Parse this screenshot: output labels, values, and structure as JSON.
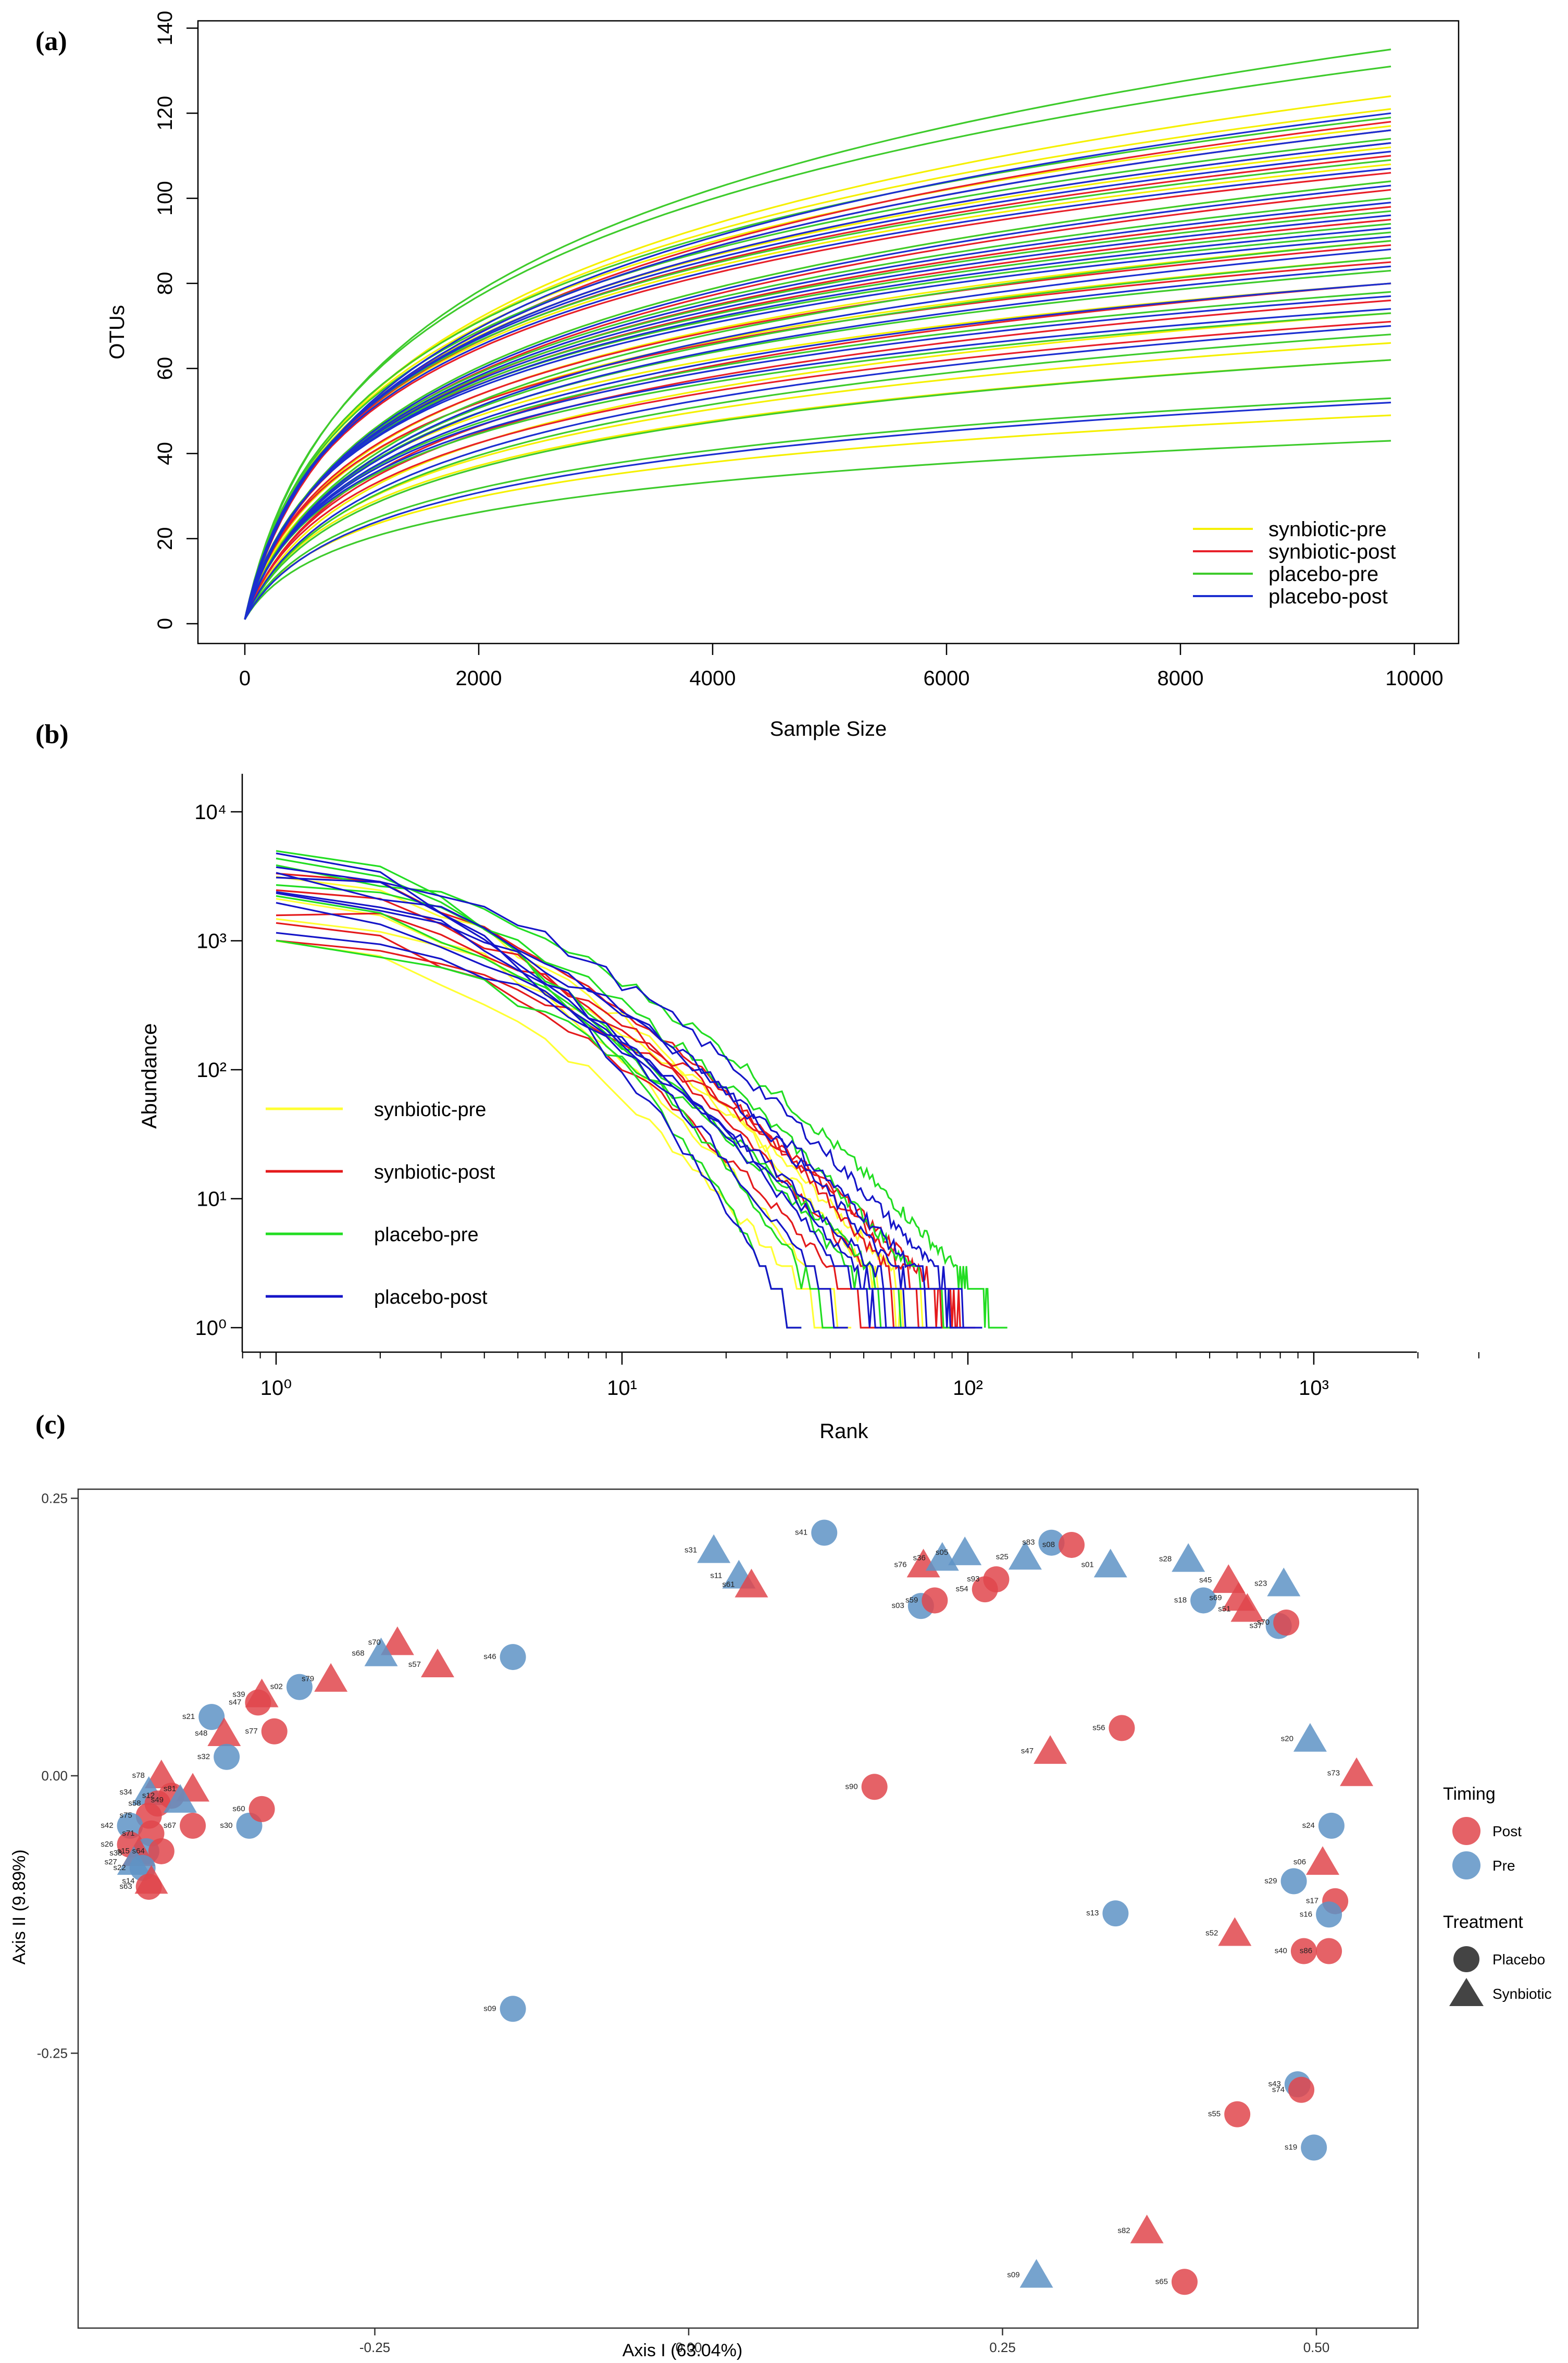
{
  "panels": {
    "a": {
      "label": "(a)"
    },
    "b": {
      "label": "(b)"
    },
    "c": {
      "label": "(c)"
    }
  },
  "chart_data": [
    {
      "type": "line",
      "panel": "(a)",
      "xlabel": "Sample Size",
      "ylabel": "OTUs",
      "xlim": [
        0,
        10000
      ],
      "ylim": [
        0,
        140
      ],
      "xticks": [
        0,
        2000,
        4000,
        6000,
        8000,
        10000
      ],
      "yticks": [
        0,
        20,
        40,
        60,
        80,
        100,
        120,
        140
      ],
      "legend_position": "bottom-right",
      "legend": [
        {
          "name": "synbiotic-pre",
          "color": "#f5f000"
        },
        {
          "name": "synbiotic-post",
          "color": "#e8202a"
        },
        {
          "name": "placebo-pre",
          "color": "#3ecb2c"
        },
        {
          "name": "placebo-post",
          "color": "#1c2fd0"
        }
      ],
      "x_end": 9800,
      "curve_groups": [
        {
          "name": "synbiotic-pre",
          "color": "#f5f000",
          "final_otus": [
            124,
            121,
            117,
            112,
            108,
            104,
            98,
            90,
            86,
            80,
            73,
            66,
            62,
            49
          ]
        },
        {
          "name": "synbiotic-post",
          "color": "#e8202a",
          "final_otus": [
            118,
            116,
            113,
            110,
            106,
            102,
            98,
            95,
            89,
            85,
            80,
            76,
            71
          ]
        },
        {
          "name": "placebo-pre",
          "color": "#3ecb2c",
          "final_otus": [
            135,
            131,
            119,
            114,
            109,
            104,
            100,
            97,
            94,
            92,
            90,
            86,
            83,
            78,
            73,
            68,
            62,
            53,
            43
          ]
        },
        {
          "name": "placebo-post",
          "color": "#1c2fd0",
          "final_otus": [
            120,
            116,
            113,
            111,
            107,
            103,
            99,
            96,
            93,
            91,
            88,
            84,
            80,
            77,
            74,
            70,
            52
          ]
        }
      ]
    },
    {
      "type": "line",
      "panel": "(b)",
      "xlabel": "Rank",
      "ylabel": "Abundance",
      "x_scale": "log",
      "y_scale": "log",
      "xlim": [
        0.8,
        3000
      ],
      "ylim": [
        0.85,
        20000
      ],
      "xticks": [
        1,
        10,
        100,
        1000
      ],
      "xtick_labels": [
        "10⁰",
        "10¹",
        "10²",
        "10³"
      ],
      "yticks": [
        1,
        10,
        100,
        1000,
        10000
      ],
      "ytick_labels": [
        "10⁰",
        "10¹",
        "10²",
        "10³",
        "10⁴"
      ],
      "legend_position": "bottom-left",
      "legend": [
        {
          "name": "synbiotic-pre",
          "color": "#ffff33"
        },
        {
          "name": "synbiotic-post",
          "color": "#e41a1c"
        },
        {
          "name": "placebo-pre",
          "color": "#22dd22"
        },
        {
          "name": "placebo-post",
          "color": "#1515c8"
        }
      ],
      "curve_groups": [
        {
          "name": "synbiotic-pre",
          "color": "#ffff33",
          "start_abundance": [
            1000,
            2200,
            3000,
            1500
          ],
          "last_rank": [
            40,
            46,
            70,
            85
          ]
        },
        {
          "name": "synbiotic-post",
          "color": "#e41a1c",
          "start_abundance": [
            1300,
            2500,
            3300,
            1800,
            1100
          ],
          "last_rank": [
            55,
            68,
            80,
            92,
            105
          ]
        },
        {
          "name": "placebo-pre",
          "color": "#22dd22",
          "start_abundance": [
            5500,
            4200,
            2000,
            1000,
            2800,
            3500
          ],
          "last_rank": [
            33,
            42,
            62,
            75,
            95,
            130
          ]
        },
        {
          "name": "placebo-post",
          "color": "#1515c8",
          "start_abundance": [
            4500,
            3500,
            2600,
            1800,
            1200,
            3000,
            2200,
            4000
          ],
          "last_rank": [
            33,
            45,
            58,
            66,
            76,
            84,
            98,
            110
          ]
        }
      ]
    },
    {
      "type": "scatter",
      "panel": "(c)",
      "xlabel": "Axis I (63.04%)",
      "ylabel": "Axis II (9.89%)",
      "xlim": [
        -0.48,
        0.58
      ],
      "ylim": [
        -0.475,
        0.265
      ],
      "xticks": [
        -0.25,
        0.0,
        0.25,
        0.5
      ],
      "xtick_labels": [
        "-0.25",
        "0.00",
        "0.25",
        "0.50"
      ],
      "yticks": [
        -0.25,
        0.0,
        0.25
      ],
      "ytick_labels": [
        "-0.25",
        "0.00",
        "0.25"
      ],
      "legend": {
        "timing_title": "Timing",
        "timing": [
          {
            "name": "Post",
            "color": "#e0474c"
          },
          {
            "name": "Pre",
            "color": "#5e93c5"
          }
        ],
        "treatment_title": "Treatment",
        "treatment": [
          {
            "name": "Placebo",
            "shape": "circle"
          },
          {
            "name": "Synbiotic",
            "shape": "triangle"
          }
        ]
      },
      "points": [
        {
          "label": "s41",
          "x": 0.108,
          "y": 0.219,
          "timing": "Pre",
          "treatment": "Placebo"
        },
        {
          "label": "s31",
          "x": 0.02,
          "y": 0.203,
          "timing": "Pre",
          "treatment": "Synbiotic"
        },
        {
          "label": "s11",
          "x": 0.04,
          "y": 0.18,
          "timing": "Pre",
          "treatment": "Synbiotic"
        },
        {
          "label": "s61",
          "x": 0.05,
          "y": 0.172,
          "timing": "Post",
          "treatment": "Synbiotic"
        },
        {
          "label": "s76",
          "x": 0.187,
          "y": 0.19,
          "timing": "Post",
          "treatment": "Synbiotic"
        },
        {
          "label": "s36",
          "x": 0.202,
          "y": 0.196,
          "timing": "Pre",
          "treatment": "Synbiotic"
        },
        {
          "label": "s05",
          "x": 0.22,
          "y": 0.201,
          "timing": "Pre",
          "treatment": "Synbiotic"
        },
        {
          "label": "s25",
          "x": 0.268,
          "y": 0.197,
          "timing": "Pre",
          "treatment": "Synbiotic"
        },
        {
          "label": "s83",
          "x": 0.289,
          "y": 0.21,
          "timing": "Pre",
          "treatment": "Placebo"
        },
        {
          "label": "s08",
          "x": 0.305,
          "y": 0.208,
          "timing": "Post",
          "treatment": "Placebo"
        },
        {
          "label": "s01",
          "x": 0.336,
          "y": 0.19,
          "timing": "Pre",
          "treatment": "Synbiotic"
        },
        {
          "label": "s28",
          "x": 0.398,
          "y": 0.195,
          "timing": "Pre",
          "treatment": "Synbiotic"
        },
        {
          "label": "s23",
          "x": 0.474,
          "y": 0.173,
          "timing": "Pre",
          "treatment": "Synbiotic"
        },
        {
          "label": "s45",
          "x": 0.43,
          "y": 0.176,
          "timing": "Post",
          "treatment": "Synbiotic"
        },
        {
          "label": "s18",
          "x": 0.41,
          "y": 0.158,
          "timing": "Pre",
          "treatment": "Placebo"
        },
        {
          "label": "s69",
          "x": 0.438,
          "y": 0.16,
          "timing": "Post",
          "treatment": "Synbiotic"
        },
        {
          "label": "s51",
          "x": 0.445,
          "y": 0.15,
          "timing": "Post",
          "treatment": "Synbiotic"
        },
        {
          "label": "s37",
          "x": 0.47,
          "y": 0.135,
          "timing": "Pre",
          "treatment": "Placebo"
        },
        {
          "label": "s70",
          "x": 0.476,
          "y": 0.138,
          "timing": "Post",
          "treatment": "Placebo"
        },
        {
          "label": "s03",
          "x": 0.185,
          "y": 0.153,
          "timing": "Pre",
          "treatment": "Placebo"
        },
        {
          "label": "s59",
          "x": 0.196,
          "y": 0.158,
          "timing": "Post",
          "treatment": "Placebo"
        },
        {
          "label": "s54",
          "x": 0.236,
          "y": 0.168,
          "timing": "Post",
          "treatment": "Placebo"
        },
        {
          "label": "s93",
          "x": 0.245,
          "y": 0.177,
          "timing": "Post",
          "treatment": "Placebo"
        },
        {
          "label": "s46",
          "x": -0.14,
          "y": 0.107,
          "timing": "Pre",
          "treatment": "Placebo"
        },
        {
          "label": "s57",
          "x": -0.2,
          "y": 0.1,
          "timing": "Post",
          "treatment": "Synbiotic"
        },
        {
          "label": "s70",
          "x": -0.232,
          "y": 0.12,
          "timing": "Post",
          "treatment": "Synbiotic"
        },
        {
          "label": "s68",
          "x": -0.245,
          "y": 0.11,
          "timing": "Pre",
          "treatment": "Synbiotic"
        },
        {
          "label": "s79",
          "x": -0.285,
          "y": 0.087,
          "timing": "Post",
          "treatment": "Synbiotic"
        },
        {
          "label": "s02",
          "x": -0.31,
          "y": 0.08,
          "timing": "Pre",
          "treatment": "Placebo"
        },
        {
          "label": "s39",
          "x": -0.34,
          "y": 0.073,
          "timing": "Post",
          "treatment": "Synbiotic"
        },
        {
          "label": "s47",
          "x": -0.343,
          "y": 0.066,
          "timing": "Post",
          "treatment": "Placebo"
        },
        {
          "label": "s21",
          "x": -0.38,
          "y": 0.053,
          "timing": "Pre",
          "treatment": "Placebo"
        },
        {
          "label": "s77",
          "x": -0.33,
          "y": 0.04,
          "timing": "Post",
          "treatment": "Placebo"
        },
        {
          "label": "s48",
          "x": -0.37,
          "y": 0.038,
          "timing": "Post",
          "treatment": "Synbiotic"
        },
        {
          "label": "s32",
          "x": -0.368,
          "y": 0.017,
          "timing": "Pre",
          "treatment": "Placebo"
        },
        {
          "label": "s78",
          "x": -0.42,
          "y": 0.0,
          "timing": "Post",
          "treatment": "Synbiotic"
        },
        {
          "label": "s81",
          "x": -0.395,
          "y": -0.012,
          "timing": "Post",
          "treatment": "Synbiotic"
        },
        {
          "label": "s34",
          "x": -0.43,
          "y": -0.015,
          "timing": "Pre",
          "treatment": "Synbiotic"
        },
        {
          "label": "s12",
          "x": -0.412,
          "y": -0.018,
          "timing": "Post",
          "treatment": "Placebo"
        },
        {
          "label": "s58",
          "x": -0.423,
          "y": -0.025,
          "timing": "Post",
          "treatment": "Placebo"
        },
        {
          "label": "s49",
          "x": -0.405,
          "y": -0.022,
          "timing": "Pre",
          "treatment": "Synbiotic"
        },
        {
          "label": "s75",
          "x": -0.43,
          "y": -0.036,
          "timing": "Post",
          "treatment": "Placebo"
        },
        {
          "label": "s42",
          "x": -0.445,
          "y": -0.045,
          "timing": "Pre",
          "treatment": "Placebo"
        },
        {
          "label": "s71",
          "x": -0.428,
          "y": -0.052,
          "timing": "Post",
          "treatment": "Placebo"
        },
        {
          "label": "s67",
          "x": -0.395,
          "y": -0.045,
          "timing": "Post",
          "treatment": "Placebo"
        },
        {
          "label": "s30",
          "x": -0.35,
          "y": -0.045,
          "timing": "Pre",
          "treatment": "Placebo"
        },
        {
          "label": "s60",
          "x": -0.34,
          "y": -0.03,
          "timing": "Post",
          "treatment": "Placebo"
        },
        {
          "label": "s26",
          "x": -0.445,
          "y": -0.062,
          "timing": "Post",
          "treatment": "Placebo"
        },
        {
          "label": "s15",
          "x": -0.432,
          "y": -0.068,
          "timing": "Pre",
          "treatment": "Placebo"
        },
        {
          "label": "s38",
          "x": -0.438,
          "y": -0.07,
          "timing": "Post",
          "treatment": "Synbiotic"
        },
        {
          "label": "s64",
          "x": -0.42,
          "y": -0.068,
          "timing": "Post",
          "treatment": "Placebo"
        },
        {
          "label": "s27",
          "x": -0.442,
          "y": -0.078,
          "timing": "Pre",
          "treatment": "Synbiotic"
        },
        {
          "label": "s22",
          "x": -0.435,
          "y": -0.083,
          "timing": "Pre",
          "treatment": "Placebo"
        },
        {
          "label": "s14",
          "x": -0.428,
          "y": -0.095,
          "timing": "Post",
          "treatment": "Synbiotic"
        },
        {
          "label": "s63",
          "x": -0.43,
          "y": -0.1,
          "timing": "Post",
          "treatment": "Placebo"
        },
        {
          "label": "s09",
          "x": -0.14,
          "y": -0.21,
          "timing": "Pre",
          "treatment": "Placebo"
        },
        {
          "label": "s90",
          "x": 0.148,
          "y": -0.01,
          "timing": "Post",
          "treatment": "Placebo"
        },
        {
          "label": "s47",
          "x": 0.288,
          "y": 0.022,
          "timing": "Post",
          "treatment": "Synbiotic"
        },
        {
          "label": "s56",
          "x": 0.345,
          "y": 0.043,
          "timing": "Post",
          "treatment": "Placebo"
        },
        {
          "label": "s20",
          "x": 0.495,
          "y": 0.033,
          "timing": "Pre",
          "treatment": "Synbiotic"
        },
        {
          "label": "s73",
          "x": 0.532,
          "y": 0.002,
          "timing": "Post",
          "treatment": "Synbiotic"
        },
        {
          "label": "s24",
          "x": 0.512,
          "y": -0.045,
          "timing": "Pre",
          "treatment": "Placebo"
        },
        {
          "label": "s06",
          "x": 0.505,
          "y": -0.078,
          "timing": "Post",
          "treatment": "Synbiotic"
        },
        {
          "label": "s29",
          "x": 0.482,
          "y": -0.095,
          "timing": "Pre",
          "treatment": "Placebo"
        },
        {
          "label": "s17",
          "x": 0.515,
          "y": -0.113,
          "timing": "Post",
          "treatment": "Placebo"
        },
        {
          "label": "s16",
          "x": 0.51,
          "y": -0.125,
          "timing": "Pre",
          "treatment": "Placebo"
        },
        {
          "label": "s13",
          "x": 0.34,
          "y": -0.124,
          "timing": "Pre",
          "treatment": "Placebo"
        },
        {
          "label": "s52",
          "x": 0.435,
          "y": -0.142,
          "timing": "Post",
          "treatment": "Synbiotic"
        },
        {
          "label": "s40",
          "x": 0.49,
          "y": -0.158,
          "timing": "Post",
          "treatment": "Placebo"
        },
        {
          "label": "s86",
          "x": 0.51,
          "y": -0.158,
          "timing": "Post",
          "treatment": "Placebo"
        },
        {
          "label": "s43",
          "x": 0.485,
          "y": -0.278,
          "timing": "Pre",
          "treatment": "Placebo"
        },
        {
          "label": "s74",
          "x": 0.488,
          "y": -0.283,
          "timing": "Post",
          "treatment": "Placebo"
        },
        {
          "label": "s55",
          "x": 0.437,
          "y": -0.305,
          "timing": "Post",
          "treatment": "Placebo"
        },
        {
          "label": "s19",
          "x": 0.498,
          "y": -0.335,
          "timing": "Pre",
          "treatment": "Placebo"
        },
        {
          "label": "s82",
          "x": 0.365,
          "y": -0.41,
          "timing": "Post",
          "treatment": "Synbiotic"
        },
        {
          "label": "s09",
          "x": 0.277,
          "y": -0.45,
          "timing": "Pre",
          "treatment": "Synbiotic"
        },
        {
          "label": "s65",
          "x": 0.395,
          "y": -0.456,
          "timing": "Post",
          "treatment": "Placebo"
        }
      ]
    }
  ]
}
